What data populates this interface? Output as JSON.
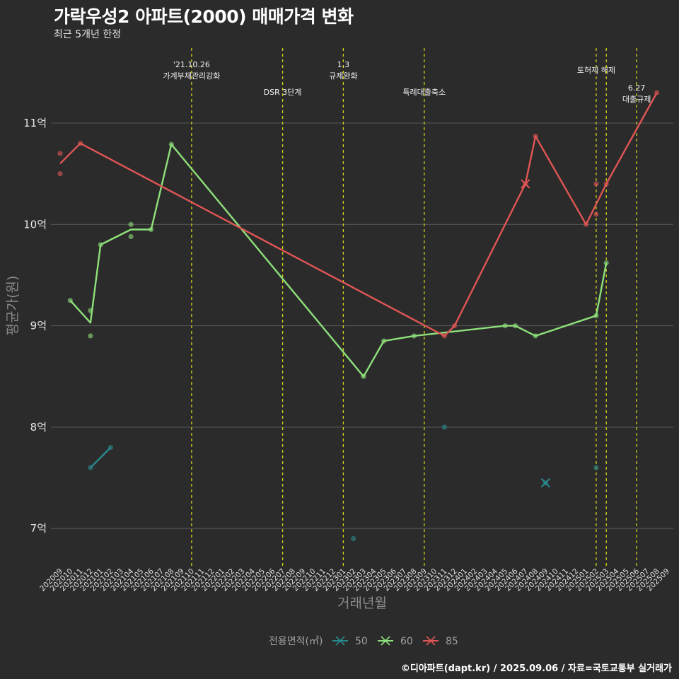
{
  "title": "가락우성2 아파트(2000) 매매가격 변화",
  "subtitle": "최근 5개년 한정",
  "caption": "©디아파트(dapt.kr) / 2025.09.06 / 자료=국토교통부 실거래가",
  "chart_data": {
    "type": "line",
    "xlabel": "거래년월",
    "ylabel": "평균가(원)",
    "ylim": [
      6.7,
      11.95
    ],
    "y_ticks": [
      {
        "value": 7,
        "label": "7억"
      },
      {
        "value": 8,
        "label": "8억"
      },
      {
        "value": 9,
        "label": "9억"
      },
      {
        "value": 10,
        "label": "10억"
      },
      {
        "value": 11,
        "label": "11억"
      }
    ],
    "x_categories": [
      "202009",
      "202010",
      "202011",
      "202012",
      "202101",
      "202102",
      "202103",
      "202104",
      "202105",
      "202106",
      "202107",
      "202108",
      "202109",
      "202110",
      "202111",
      "202112",
      "202201",
      "202202",
      "202203",
      "202204",
      "202205",
      "202206",
      "202207",
      "202208",
      "202209",
      "202210",
      "202211",
      "202212",
      "202301",
      "202302",
      "202303",
      "202304",
      "202305",
      "202306",
      "202307",
      "202308",
      "202309",
      "202310",
      "202311",
      "202312",
      "202401",
      "202402",
      "202403",
      "202404",
      "202405",
      "202406",
      "202407",
      "202408",
      "202409",
      "202410",
      "202411",
      "202412",
      "202501",
      "202502",
      "202503",
      "202504",
      "202505",
      "202506",
      "202507",
      "202508",
      "202509"
    ],
    "grid": true,
    "legend": {
      "title": "전용면적(㎡)",
      "position": "bottom",
      "entries": [
        {
          "name": "50",
          "color": "#2a8a8e"
        },
        {
          "name": "60",
          "color": "#8ee07a"
        },
        {
          "name": "85",
          "color": "#e05555"
        }
      ]
    },
    "events": [
      {
        "x": "202110",
        "label1": "'21.10.26",
        "label2": "가계부채관리강화",
        "row": 0
      },
      {
        "x": "202207",
        "label1": "DSR 3단계",
        "label2": "",
        "row": 1
      },
      {
        "x": "202301",
        "label1": "1.3",
        "label2": "규제완화",
        "row": 0
      },
      {
        "x": "202309",
        "label1": "특례대출축소",
        "label2": "",
        "row": 1
      },
      {
        "x": "202502",
        "label1": "토허제 해제",
        "label2": "",
        "row": 2
      },
      {
        "x": "202503",
        "label1": "",
        "label2": "",
        "row": 2
      },
      {
        "x": "202506",
        "label1": "6.27",
        "label2": "대출규제",
        "row": 3
      }
    ],
    "series": [
      {
        "name": "50",
        "color": "#2a8a8e",
        "line": [
          [
            "202012",
            7.6
          ],
          [
            "202102",
            7.8
          ]
        ],
        "points": [
          [
            "202012",
            7.6
          ],
          [
            "202102",
            7.8
          ],
          [
            "202302",
            6.9
          ],
          [
            "202311",
            8.0
          ],
          [
            "202409",
            7.45
          ],
          [
            "202502",
            7.6
          ]
        ],
        "crosses": [
          [
            "202409",
            7.45
          ]
        ]
      },
      {
        "name": "60",
        "color": "#8ee07a",
        "line": [
          [
            "202010",
            9.25
          ],
          [
            "202012",
            9.03
          ],
          [
            "202101",
            9.8
          ],
          [
            "202104",
            9.95
          ],
          [
            "202106",
            9.95
          ],
          [
            "202108",
            10.79
          ],
          [
            "202303",
            8.5
          ],
          [
            "202305",
            8.85
          ],
          [
            "202308",
            8.9
          ],
          [
            "202405",
            9.0
          ],
          [
            "202406",
            9.0
          ],
          [
            "202408",
            8.9
          ],
          [
            "202502",
            9.1
          ],
          [
            "202503",
            9.62
          ]
        ],
        "points": [
          [
            "202010",
            9.25
          ],
          [
            "202012",
            9.15
          ],
          [
            "202012",
            8.9
          ],
          [
            "202101",
            9.8
          ],
          [
            "202104",
            10.0
          ],
          [
            "202104",
            9.88
          ],
          [
            "202106",
            9.95
          ],
          [
            "202108",
            10.79
          ],
          [
            "202303",
            8.5
          ],
          [
            "202305",
            8.85
          ],
          [
            "202308",
            8.9
          ],
          [
            "202405",
            9.0
          ],
          [
            "202406",
            9.0
          ],
          [
            "202408",
            8.9
          ],
          [
            "202502",
            9.1
          ],
          [
            "202503",
            9.62
          ]
        ],
        "crosses": []
      },
      {
        "name": "85",
        "color": "#e05555",
        "line": [
          [
            "202009",
            10.6
          ],
          [
            "202011",
            10.8
          ],
          [
            "202311",
            8.9
          ],
          [
            "202312",
            9.0
          ],
          [
            "202407",
            10.4
          ],
          [
            "202408",
            10.87
          ],
          [
            "202501",
            10.0
          ],
          [
            "202503",
            10.4
          ],
          [
            "202508",
            11.3
          ]
        ],
        "points": [
          [
            "202009",
            10.7
          ],
          [
            "202009",
            10.5
          ],
          [
            "202011",
            10.8
          ],
          [
            "202311",
            8.9
          ],
          [
            "202312",
            9.0
          ],
          [
            "202407",
            10.4
          ],
          [
            "202408",
            10.87
          ],
          [
            "202501",
            10.0
          ],
          [
            "202502",
            10.4
          ],
          [
            "202502",
            10.1
          ],
          [
            "202503",
            10.4
          ],
          [
            "202508",
            11.3
          ]
        ],
        "crosses": [
          [
            "202407",
            10.4
          ]
        ]
      }
    ]
  }
}
